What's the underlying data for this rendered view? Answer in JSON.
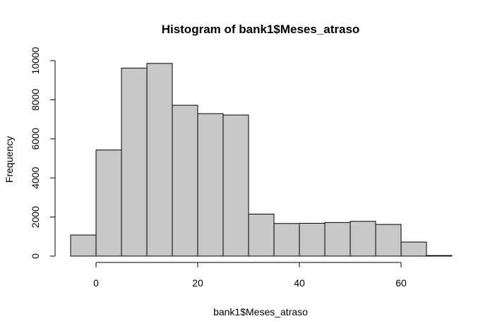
{
  "chart_data": {
    "type": "bar",
    "title": "Histogram of bank1$Meses_atraso",
    "xlabel": "bank1$Meses_atraso",
    "ylabel": "Frequency",
    "bin_edges": [
      -5,
      0,
      5,
      10,
      15,
      20,
      25,
      30,
      35,
      40,
      45,
      50,
      55,
      60,
      65,
      70
    ],
    "values": [
      1080,
      5430,
      9620,
      9860,
      7720,
      7290,
      7220,
      2150,
      1670,
      1680,
      1720,
      1780,
      1620,
      720,
      30
    ],
    "xlim": [
      -5,
      70
    ],
    "ylim": [
      0,
      10000
    ],
    "x_ticks": [
      0,
      20,
      40,
      60
    ],
    "y_ticks": [
      0,
      2000,
      4000,
      6000,
      8000,
      10000
    ],
    "x_tick_labels": [
      "0",
      "20",
      "40",
      "60"
    ],
    "y_tick_labels": [
      "0",
      "2000",
      "4000",
      "6000",
      "8000",
      "10000"
    ],
    "bar_color": "#c8c8c8",
    "grid": false
  }
}
